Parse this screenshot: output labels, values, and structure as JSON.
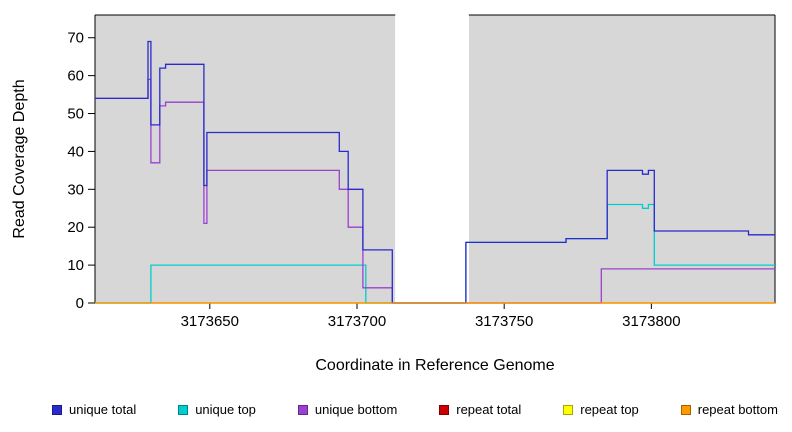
{
  "chart_data": {
    "type": "line",
    "title": "",
    "xlabel": "Coordinate in Reference Genome",
    "ylabel": "Read Coverage Depth",
    "xlim": [
      3173611,
      3173842
    ],
    "ylim": [
      0,
      76
    ],
    "xticks": [
      3173650,
      3173700,
      3173750,
      3173800
    ],
    "yticks": [
      0,
      10,
      20,
      30,
      40,
      50,
      60,
      70
    ],
    "plot_bg": "#d7d7d7",
    "no_data_region": [
      3173713,
      3173738
    ],
    "grid": false,
    "legend_position": "bottom",
    "draw_order": [
      3,
      4,
      1,
      2,
      0,
      5
    ],
    "series": [
      {
        "name": "unique total",
        "color": "#2a2acc",
        "points": [
          [
            3173611,
            54
          ],
          [
            3173629,
            54
          ],
          [
            3173629,
            69
          ],
          [
            3173630,
            69
          ],
          [
            3173630,
            47
          ],
          [
            3173633,
            47
          ],
          [
            3173633,
            62
          ],
          [
            3173635,
            62
          ],
          [
            3173635,
            63
          ],
          [
            3173648,
            63
          ],
          [
            3173648,
            31
          ],
          [
            3173649,
            31
          ],
          [
            3173649,
            45
          ],
          [
            3173694,
            45
          ],
          [
            3173694,
            40
          ],
          [
            3173697,
            40
          ],
          [
            3173697,
            30
          ],
          [
            3173702,
            30
          ],
          [
            3173702,
            14
          ],
          [
            3173712,
            14
          ],
          [
            3173712,
            0
          ],
          [
            3173737,
            0
          ],
          [
            3173737,
            16
          ],
          [
            3173771,
            16
          ],
          [
            3173771,
            17
          ],
          [
            3173785,
            17
          ],
          [
            3173785,
            35
          ],
          [
            3173797,
            35
          ],
          [
            3173797,
            34
          ],
          [
            3173799,
            34
          ],
          [
            3173799,
            35
          ],
          [
            3173801,
            35
          ],
          [
            3173801,
            19
          ],
          [
            3173833,
            19
          ],
          [
            3173833,
            18
          ],
          [
            3173842,
            18
          ]
        ]
      },
      {
        "name": "unique top",
        "color": "#00cdcd",
        "points": [
          [
            3173611,
            0
          ],
          [
            3173630,
            0
          ],
          [
            3173630,
            10
          ],
          [
            3173703,
            10
          ],
          [
            3173703,
            0
          ],
          [
            3173737,
            0
          ],
          [
            3173737,
            16
          ],
          [
            3173771,
            16
          ],
          [
            3173771,
            17
          ],
          [
            3173785,
            17
          ],
          [
            3173785,
            26
          ],
          [
            3173797,
            26
          ],
          [
            3173797,
            25
          ],
          [
            3173799,
            25
          ],
          [
            3173799,
            26
          ],
          [
            3173801,
            26
          ],
          [
            3173801,
            10
          ],
          [
            3173842,
            10
          ]
        ]
      },
      {
        "name": "unique bottom",
        "color": "#9b40d0",
        "points": [
          [
            3173611,
            54
          ],
          [
            3173629,
            54
          ],
          [
            3173629,
            59
          ],
          [
            3173630,
            59
          ],
          [
            3173630,
            37
          ],
          [
            3173633,
            37
          ],
          [
            3173633,
            52
          ],
          [
            3173635,
            52
          ],
          [
            3173635,
            53
          ],
          [
            3173648,
            53
          ],
          [
            3173648,
            21
          ],
          [
            3173649,
            21
          ],
          [
            3173649,
            35
          ],
          [
            3173694,
            35
          ],
          [
            3173694,
            30
          ],
          [
            3173697,
            30
          ],
          [
            3173697,
            20
          ],
          [
            3173702,
            20
          ],
          [
            3173702,
            4
          ],
          [
            3173712,
            4
          ],
          [
            3173712,
            0
          ],
          [
            3173783,
            0
          ],
          [
            3173783,
            9
          ],
          [
            3173842,
            9
          ]
        ]
      },
      {
        "name": "repeat total",
        "color": "#cc0000",
        "points": [
          [
            3173611,
            0
          ],
          [
            3173842,
            0
          ]
        ]
      },
      {
        "name": "repeat top",
        "color": "#ffff00",
        "points": [
          [
            3173611,
            0
          ],
          [
            3173842,
            0
          ]
        ]
      },
      {
        "name": "repeat bottom",
        "color": "#ff9900",
        "points": [
          [
            3173611,
            0
          ],
          [
            3173842,
            0
          ]
        ]
      }
    ]
  }
}
